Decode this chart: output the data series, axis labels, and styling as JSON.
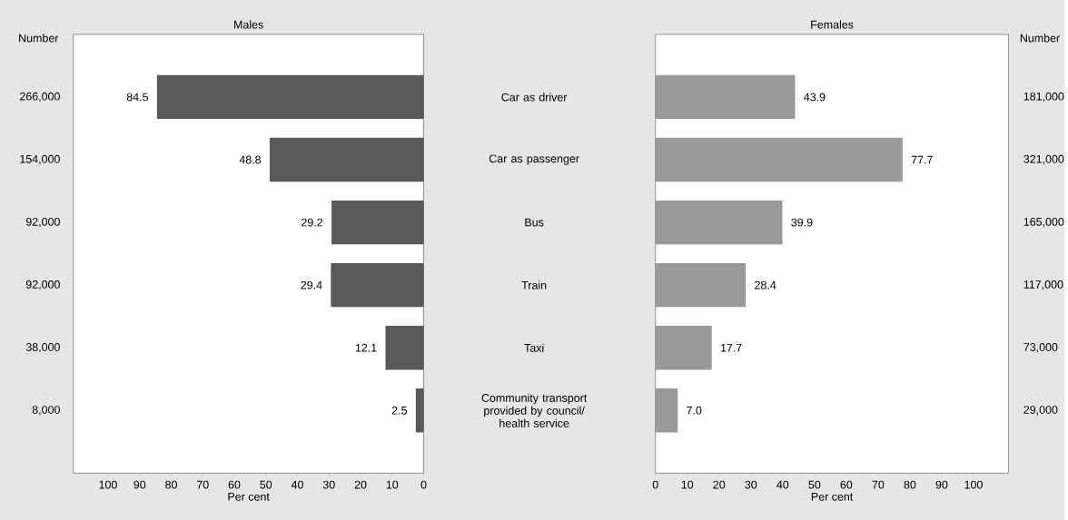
{
  "chart_data": [
    {
      "type": "bar",
      "orientation": "horizontal",
      "title": "Males",
      "xlabel": "Per cent",
      "ylabel": "Number",
      "categories": [
        "266,000",
        "154,000",
        "92,000",
        "92,000",
        "38,000",
        "8,000"
      ],
      "values": [
        84.5,
        48.8,
        29.2,
        29.4,
        12.1,
        2.5
      ],
      "value_labels": [
        "84.5",
        "48.8",
        "29.2",
        "29.4",
        "12.1",
        "2.5"
      ],
      "color": "#595959",
      "xlim": [
        111,
        0
      ],
      "xticks": [
        100,
        90,
        80,
        70,
        60,
        50,
        40,
        30,
        20,
        10,
        0
      ]
    },
    {
      "type": "bar",
      "orientation": "horizontal",
      "title": "Females",
      "xlabel": "Per cent",
      "y2label": "Number",
      "categories": [
        "Car as driver",
        "Car as passenger",
        "Bus",
        "Train",
        "Taxi",
        "Community transport provided by council/ health service"
      ],
      "values": [
        43.9,
        77.7,
        39.9,
        28.4,
        17.7,
        7.0
      ],
      "value_labels": [
        "43.9",
        "77.7",
        "39.9",
        "28.4",
        "17.7",
        "7.0"
      ],
      "annotations": [
        "181,000",
        "321,000",
        "165,000",
        "117,000",
        "73,000",
        "29,000"
      ],
      "color": "#999999",
      "xlim": [
        0,
        111
      ],
      "xticks": [
        0,
        10,
        20,
        30,
        40,
        50,
        60,
        70,
        80,
        90,
        100
      ]
    }
  ]
}
